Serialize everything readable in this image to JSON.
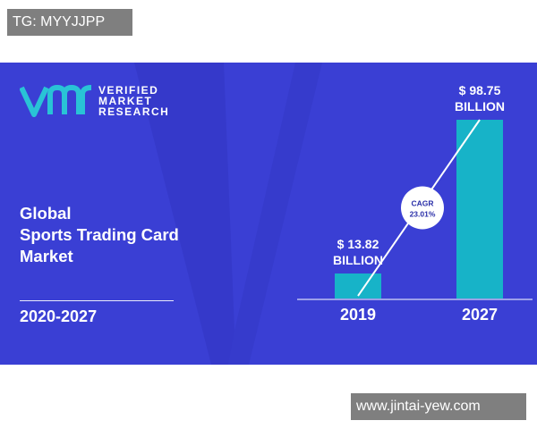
{
  "header_tag": "TG: MYYJJPP",
  "footer_tag": "www.jintai-yew.com",
  "colors": {
    "background": "#3a3fd4",
    "bar": "#17b3c8",
    "logo_mark": "#29c3d6",
    "text": "#ffffff",
    "tag_bg": "#7f7f7f"
  },
  "logo": {
    "mark_icon": "vmr-logo-icon",
    "line1": "VERIFIED",
    "line2": "MARKET",
    "line3": "RESEARCH"
  },
  "title": {
    "line1": "Global",
    "line2": "Sports Trading Card",
    "line3": "Market"
  },
  "period": "2020-2027",
  "chart_data": {
    "type": "bar",
    "categories": [
      "2019",
      "2027"
    ],
    "values": [
      13.82,
      98.75
    ],
    "data_labels": [
      {
        "line1": "$ 13.82",
        "line2": "BILLION"
      },
      {
        "line1": "$ 98.75",
        "line2": "BILLION"
      }
    ],
    "cagr": {
      "label": "CAGR",
      "value": "23.01%"
    },
    "ylim": [
      0,
      98.75
    ],
    "grid": false,
    "xlabel": "",
    "ylabel": ""
  }
}
